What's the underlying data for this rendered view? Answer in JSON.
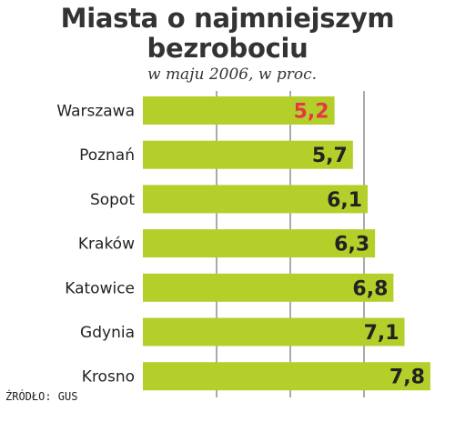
{
  "header": {
    "title_line1": "Miasta o najmniejszym",
    "title_line2": "bezrobociu",
    "subtitle": "w maju 2006, w proc."
  },
  "footer": {
    "source": "ŹRÓDŁO: GUS"
  },
  "colors": {
    "bar": "#b5cf2a",
    "highlight_label": "#e03a45",
    "label": "#222222",
    "grid": "#555555"
  },
  "chart_data": {
    "type": "bar",
    "orientation": "horizontal",
    "title": "Miasta o najmniejszym bezrobociu",
    "subtitle": "w maju 2006, w proc.",
    "categories": [
      "Warszawa",
      "Poznań",
      "Sopot",
      "Kraków",
      "Katowice",
      "Gdynia",
      "Krosno"
    ],
    "values": [
      5.2,
      5.7,
      6.1,
      6.3,
      6.8,
      7.1,
      7.8
    ],
    "value_labels": [
      "5,2",
      "5,7",
      "6,1",
      "6,3",
      "6,8",
      "7,1",
      "7,8"
    ],
    "highlight_index": 0,
    "xlim": [
      0,
      8.0
    ],
    "grid": true,
    "gridlines": [
      2,
      4,
      6
    ],
    "legend": "none"
  }
}
